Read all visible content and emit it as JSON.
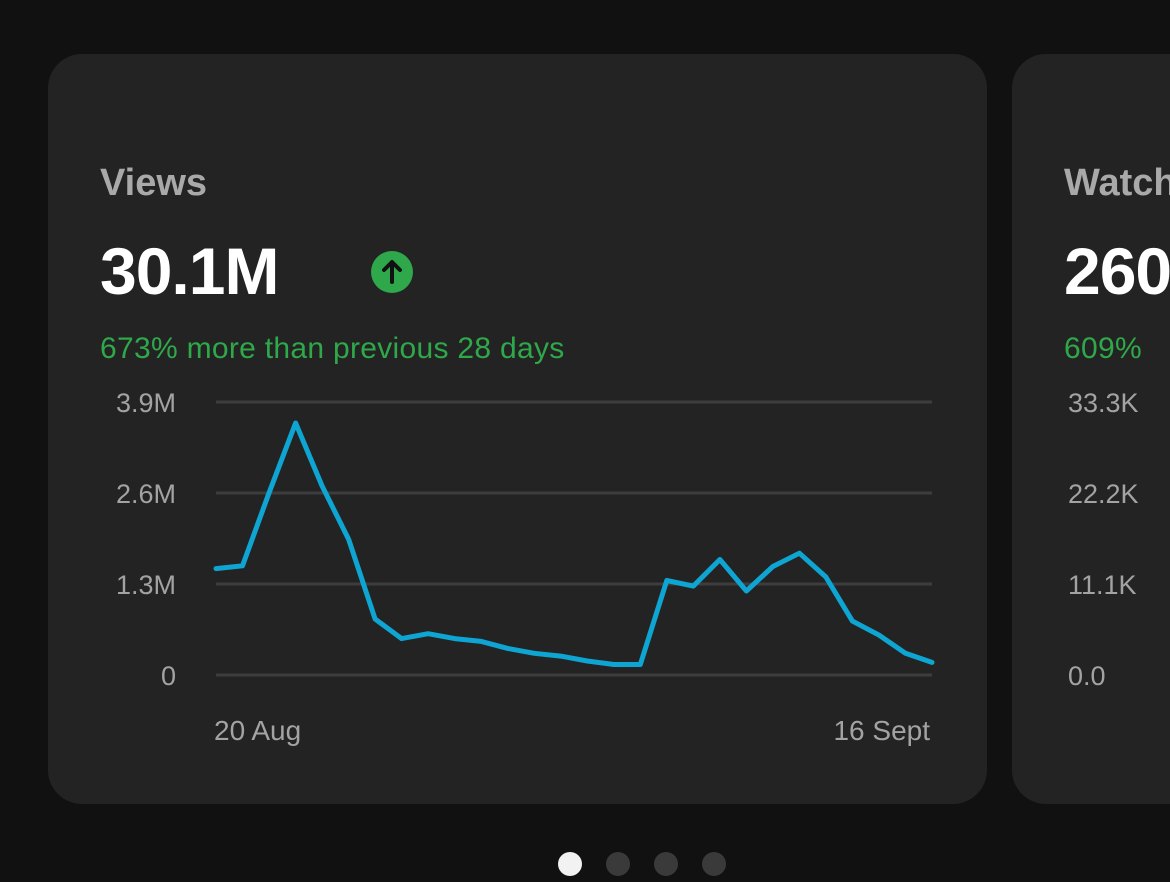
{
  "cards": [
    {
      "label": "Views",
      "value": "30.1M",
      "trend_icon": "arrow-up-circle-icon",
      "change_text": "673% more than previous 28 days",
      "accent_color": "#2ea84a",
      "line_color": "#0ea5d3"
    },
    {
      "label": "Watch",
      "value": "260",
      "change_text": "609%"
    }
  ],
  "chart_data": [
    {
      "type": "line",
      "title": "Views",
      "ylim": [
        0,
        3900000
      ],
      "y_ticks": [
        {
          "value": 3900000,
          "label": "3.9M"
        },
        {
          "value": 2600000,
          "label": "2.6M"
        },
        {
          "value": 1300000,
          "label": "1.3M"
        },
        {
          "value": 0,
          "label": "0"
        }
      ],
      "x_labels": [
        "20 Aug",
        "16 Sept"
      ],
      "series": [
        {
          "name": "Views",
          "values": [
            1520000,
            1560000,
            2600000,
            3600000,
            2700000,
            1940000,
            800000,
            520000,
            590000,
            520000,
            480000,
            380000,
            310000,
            270000,
            200000,
            150000,
            150000,
            1350000,
            1270000,
            1650000,
            1200000,
            1550000,
            1740000,
            1400000,
            770000,
            570000,
            310000,
            180000
          ]
        }
      ]
    },
    {
      "type": "line",
      "title": "Watch",
      "y_ticks": [
        {
          "value": 33300,
          "label": "33.3K"
        },
        {
          "value": 22200,
          "label": "22.2K"
        },
        {
          "value": 11100,
          "label": "11.1K"
        },
        {
          "value": 0,
          "label": "0.0"
        }
      ]
    }
  ],
  "pagination": {
    "count": 4,
    "active_index": 0
  }
}
